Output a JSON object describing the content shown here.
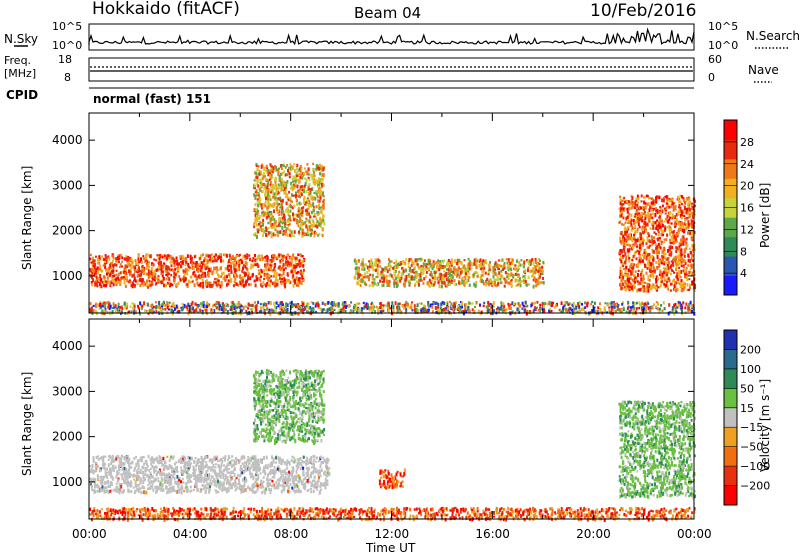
{
  "header": {
    "title": "Hokkaido (fitACF)",
    "beam": "Beam 04",
    "date": "10/Feb/2016"
  },
  "noise_panel": {
    "left_label": "N.Sky",
    "right_label": "N.Search",
    "left_ticks": [
      "10^5",
      "10^0"
    ],
    "right_ticks": [
      "10^5",
      "10^0"
    ],
    "series": [
      "N.Sky",
      "N.Search"
    ]
  },
  "freq_panel": {
    "left_label_1": "Freq.",
    "left_label_2": "[MHz]",
    "right_label": "Nave",
    "left_ticks": [
      "18",
      "8"
    ],
    "right_ticks": [
      "60",
      "0"
    ]
  },
  "cpid_panel": {
    "label": "CPID",
    "mode_text": "normal (fast) 151"
  },
  "colors": {
    "power_scale": [
      "#1a1aff",
      "#2a55b0",
      "#2e8b57",
      "#5ca84a",
      "#c8d23a",
      "#f0b020",
      "#f07818",
      "#e82a10",
      "#ff0000"
    ],
    "velocity_scale": [
      "#2030b0",
      "#2a6a8a",
      "#2e8b57",
      "#6ac040",
      "#c0c0c0",
      "#f0a020",
      "#f07010",
      "#e83010",
      "#ff0000"
    ]
  },
  "chart_data": [
    {
      "type": "heatmap",
      "name": "Power",
      "xlabel": "Time UT",
      "ylabel": "Slant Range [km]",
      "x_ticks": [
        "00:00",
        "04:00",
        "08:00",
        "12:00",
        "16:00",
        "20:00",
        "00:00"
      ],
      "y_ticks": [
        "1000",
        "2000",
        "3000",
        "4000"
      ],
      "ylim": [
        180,
        4600
      ],
      "xlim": [
        0,
        24
      ],
      "colorbar": {
        "label": "Power [dB]",
        "ticks": [
          "4",
          "8",
          "12",
          "16",
          "20",
          "24",
          "28"
        ],
        "range": [
          0,
          32
        ]
      },
      "features": [
        {
          "t_start": 0,
          "t_end": 8.5,
          "range_low": 800,
          "range_high": 1500,
          "level": "high"
        },
        {
          "t_start": 6.5,
          "t_end": 9.3,
          "range_low": 1900,
          "range_high": 3500,
          "level": "medium"
        },
        {
          "t_start": 10.5,
          "t_end": 18,
          "range_low": 800,
          "range_high": 1400,
          "level": "medium"
        },
        {
          "t_start": 21,
          "t_end": 24,
          "range_low": 700,
          "range_high": 2800,
          "level": "high"
        },
        {
          "t_start": 0,
          "t_end": 24,
          "range_low": 200,
          "range_high": 450,
          "level": "mixed"
        }
      ]
    },
    {
      "type": "heatmap",
      "name": "Velocity",
      "xlabel": "Time UT",
      "ylabel": "Slant Range [km]",
      "x_ticks": [
        "00:00",
        "04:00",
        "08:00",
        "12:00",
        "16:00",
        "20:00",
        "00:00"
      ],
      "y_ticks": [
        "1000",
        "2000",
        "3000",
        "4000"
      ],
      "ylim": [
        180,
        4600
      ],
      "xlim": [
        0,
        24
      ],
      "colorbar": {
        "label": "Velocity [m s⁻¹]",
        "ticks": [
          "200",
          "100",
          "50",
          "15",
          "−15",
          "−50",
          "−100",
          "−200"
        ],
        "range": [
          -250,
          250
        ]
      },
      "features": [
        {
          "t_start": 0,
          "t_end": 9.5,
          "range_low": 800,
          "range_high": 1600,
          "level": "ground"
        },
        {
          "t_start": 6.5,
          "t_end": 9.3,
          "range_low": 1900,
          "range_high": 3500,
          "level": "positive"
        },
        {
          "t_start": 11.5,
          "t_end": 12.5,
          "range_low": 900,
          "range_high": 1300,
          "level": "negative"
        },
        {
          "t_start": 21,
          "t_end": 24,
          "range_low": 700,
          "range_high": 2800,
          "level": "positive"
        },
        {
          "t_start": 0,
          "t_end": 24,
          "range_low": 200,
          "range_high": 450,
          "level": "negative"
        }
      ]
    }
  ]
}
